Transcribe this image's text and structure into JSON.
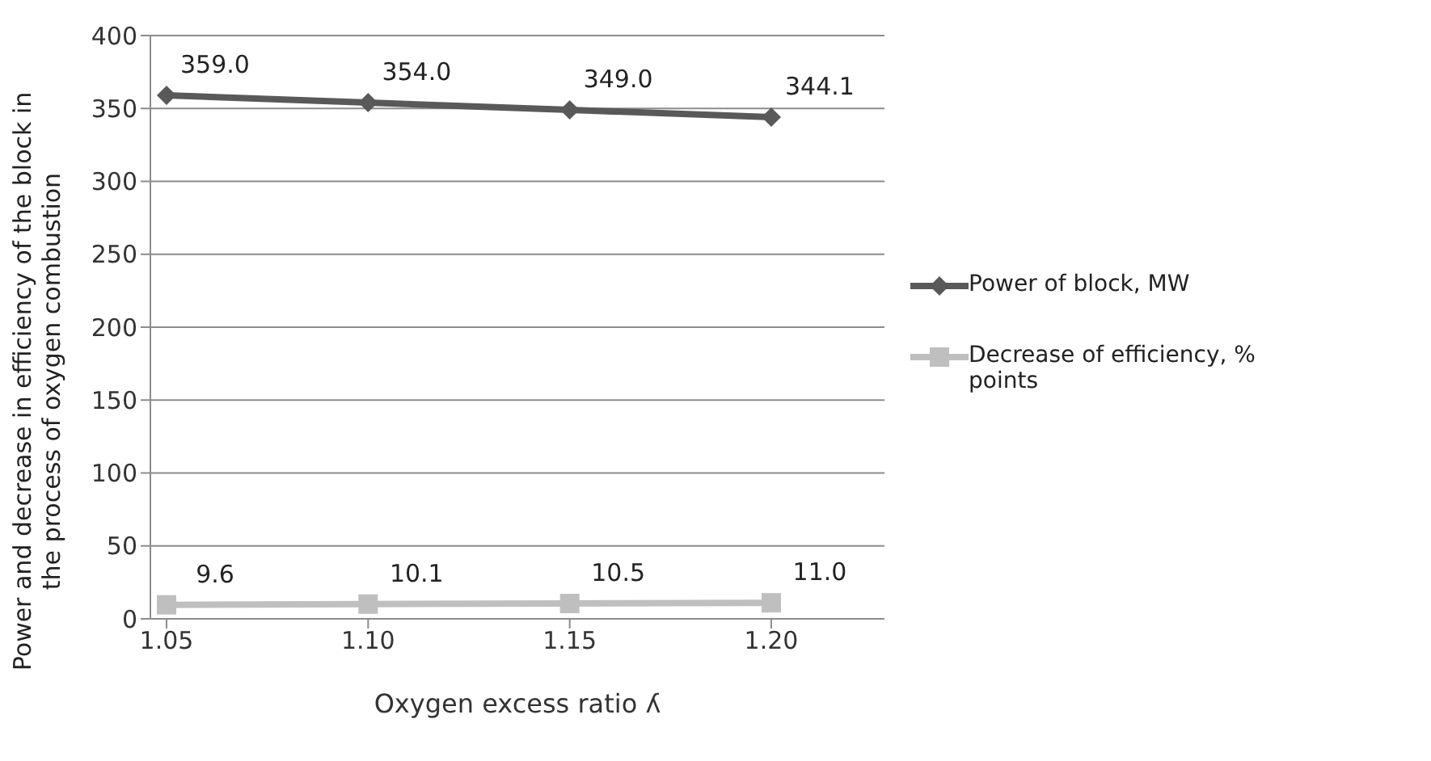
{
  "chart_data": {
    "type": "line",
    "xlabel": "Oxygen excess ratio ʎ",
    "ylabel": "Power and decrease in efficiency of the block in the process of oxygen combustion",
    "categories": [
      "1.05",
      "1.10",
      "1.15",
      "1.20"
    ],
    "series": [
      {
        "name": "Power of block, MW",
        "color": "#595959",
        "marker": "diamond",
        "values": [
          359.0,
          354.0,
          349.0,
          344.1
        ],
        "value_labels": [
          "359.0",
          "354.0",
          "349.0",
          "344.1"
        ]
      },
      {
        "name": "Decrease of efficiency, % points",
        "color": "#bfbfbf",
        "marker": "square",
        "values": [
          9.6,
          10.1,
          10.5,
          11.0
        ],
        "value_labels": [
          "9.6",
          "10.1",
          "10.5",
          "11.0"
        ]
      }
    ],
    "ylim": [
      0,
      400
    ],
    "yticks": [
      0,
      50,
      100,
      150,
      200,
      250,
      300,
      350,
      400
    ],
    "grid": "y",
    "legend": "right",
    "line_style": "solid"
  }
}
